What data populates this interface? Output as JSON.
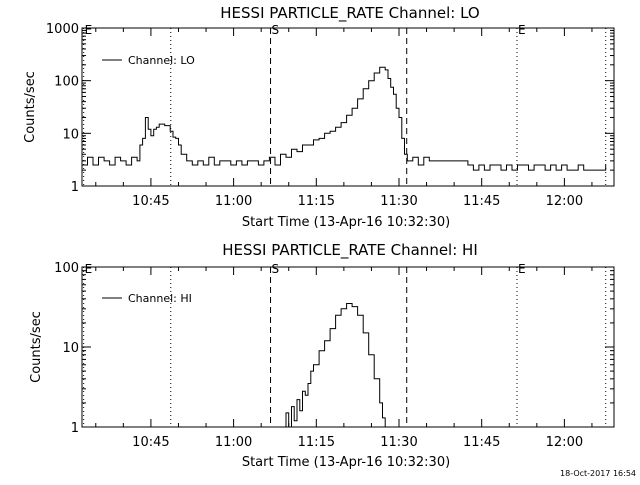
{
  "footer": {
    "timestamp": "18-Oct-2017 16:54"
  },
  "chart_data": [
    {
      "type": "line",
      "title": "HESSI PARTICLE_RATE Channel: LO",
      "xlabel": "Start Time (13-Apr-16 10:32:30)",
      "ylabel": "Counts/sec",
      "y_scale": "log",
      "ylim": [
        1,
        1000
      ],
      "y_ticks": [
        {
          "value": 1,
          "label": "1"
        },
        {
          "value": 10,
          "label": "10"
        },
        {
          "value": 100,
          "label": "100"
        },
        {
          "value": 1000,
          "label": "1000"
        }
      ],
      "xlim_minutes": [
        0,
        96.5
      ],
      "x_ticks": [
        {
          "value": 12.5,
          "label": "10:45"
        },
        {
          "value": 27.5,
          "label": "11:00"
        },
        {
          "value": 42.5,
          "label": "11:15"
        },
        {
          "value": 57.5,
          "label": "11:30"
        },
        {
          "value": 72.5,
          "label": "11:45"
        },
        {
          "value": 87.5,
          "label": "12:00"
        }
      ],
      "legend": {
        "label": "Channel: LO",
        "placement": "top-left"
      },
      "markers": [
        {
          "label": "E",
          "x": 0.3,
          "style": "dotted"
        },
        {
          "label": "",
          "x": 16.1,
          "style": "dotted"
        },
        {
          "label": "S",
          "x": 34.2,
          "style": "dashed"
        },
        {
          "label": "",
          "x": 58.9,
          "style": "dashed"
        },
        {
          "label": "E",
          "x": 78.9,
          "style": "dotted"
        },
        {
          "label": "",
          "x": 95.0,
          "style": "dotted"
        }
      ],
      "series": [
        {
          "name": "Channel: LO",
          "x": [
            0,
            1,
            2,
            3,
            4,
            5,
            6,
            7,
            8,
            9,
            10,
            10.5,
            11,
            11.5,
            12,
            12.5,
            13,
            13.5,
            14,
            15,
            16,
            16.5,
            17,
            17.5,
            18,
            19,
            20,
            21,
            22,
            23,
            24,
            25,
            26,
            27,
            28,
            29,
            30,
            31,
            32,
            33,
            34,
            35,
            36,
            37,
            38,
            39,
            40,
            41,
            42,
            43,
            44,
            45,
            46,
            47,
            48,
            49,
            50,
            51,
            52,
            53,
            54,
            55,
            55.5,
            56,
            56.5,
            57,
            57.5,
            58,
            58.5,
            59,
            60,
            61,
            62,
            63,
            64,
            65,
            66,
            67,
            68,
            69,
            70,
            71,
            72,
            73,
            74,
            75,
            76,
            77,
            78,
            79,
            80,
            81,
            82,
            83,
            84,
            85,
            86,
            87,
            88,
            89,
            90,
            91,
            92,
            93,
            94,
            95
          ],
          "values": [
            2.5,
            3.5,
            2.5,
            3.5,
            3,
            2.5,
            3.5,
            3,
            2.5,
            3.5,
            3,
            6,
            8,
            20,
            12,
            9,
            12,
            13,
            15,
            14,
            11,
            8.5,
            8,
            6,
            4,
            3,
            2.5,
            3,
            2.5,
            3.5,
            2.5,
            3,
            3,
            2.5,
            3,
            2.5,
            3,
            3,
            2.5,
            3,
            3.5,
            2.5,
            4,
            3.5,
            5,
            4.5,
            6,
            6,
            7.5,
            8,
            10,
            11,
            13,
            16,
            22,
            30,
            45,
            70,
            100,
            140,
            180,
            160,
            110,
            75,
            55,
            30,
            20,
            8,
            4,
            3,
            3.5,
            2.5,
            3.5,
            3,
            3,
            3,
            3,
            3,
            3,
            3,
            2.5,
            2,
            2.5,
            2,
            2.5,
            2.5,
            2,
            2.5,
            2,
            2.5,
            2.5,
            2,
            2.5,
            2.5,
            2,
            2.5,
            2,
            2.5,
            2,
            2,
            2.5,
            2,
            2,
            2,
            2,
            2.5
          ]
        }
      ]
    },
    {
      "type": "line",
      "title": "HESSI PARTICLE_RATE Channel: HI",
      "xlabel": "Start Time (13-Apr-16 10:32:30)",
      "ylabel": "Counts/sec",
      "y_scale": "log",
      "ylim": [
        1,
        100
      ],
      "y_ticks": [
        {
          "value": 1,
          "label": "1"
        },
        {
          "value": 10,
          "label": "10"
        },
        {
          "value": 100,
          "label": "100"
        }
      ],
      "xlim_minutes": [
        0,
        96.5
      ],
      "x_ticks": [
        {
          "value": 12.5,
          "label": "10:45"
        },
        {
          "value": 27.5,
          "label": "11:00"
        },
        {
          "value": 42.5,
          "label": "11:15"
        },
        {
          "value": 57.5,
          "label": "11:30"
        },
        {
          "value": 72.5,
          "label": "11:45"
        },
        {
          "value": 87.5,
          "label": "12:00"
        }
      ],
      "legend": {
        "label": "Channel: HI",
        "placement": "top-left"
      },
      "markers": [
        {
          "label": "E",
          "x": 0.3,
          "style": "dotted"
        },
        {
          "label": "",
          "x": 16.1,
          "style": "dotted"
        },
        {
          "label": "S",
          "x": 34.2,
          "style": "dashed"
        },
        {
          "label": "",
          "x": 58.9,
          "style": "dashed"
        },
        {
          "label": "E",
          "x": 78.9,
          "style": "dotted"
        },
        {
          "label": "",
          "x": 95.0,
          "style": "dotted"
        }
      ],
      "series": [
        {
          "name": "Channel: HI",
          "x": [
            36.5,
            37,
            37.5,
            38,
            38.5,
            39,
            39.5,
            40,
            40.5,
            41,
            41.5,
            42,
            43,
            44,
            45,
            46,
            47,
            48,
            49,
            50,
            51,
            52,
            53,
            54,
            54.5,
            55
          ],
          "values": [
            1,
            1.5,
            1,
            1.8,
            1.2,
            2.2,
            1.6,
            2.8,
            2.5,
            3.5,
            5,
            6,
            9,
            12,
            17,
            25,
            30,
            35,
            32,
            25,
            15,
            8,
            4,
            2,
            1.3,
            1
          ]
        }
      ]
    }
  ]
}
